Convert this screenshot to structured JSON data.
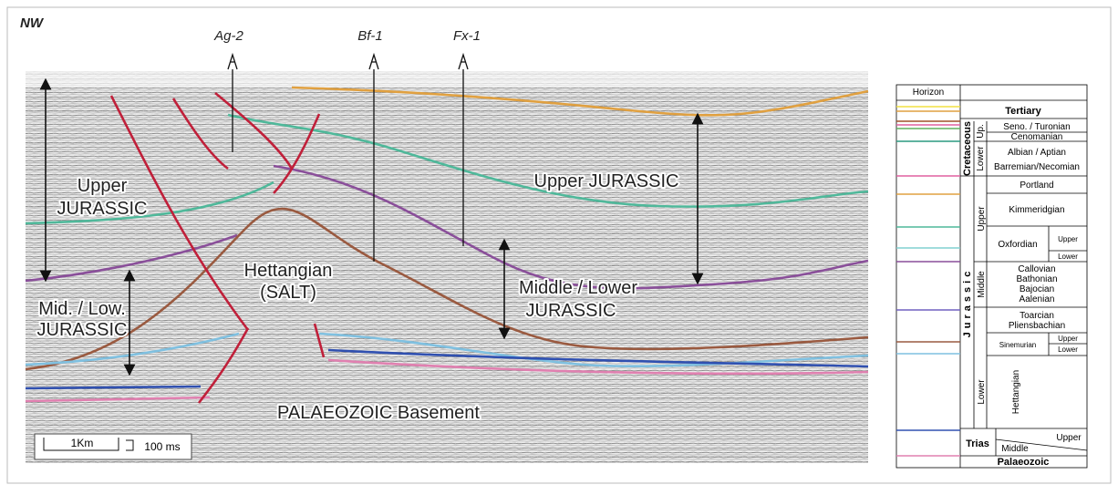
{
  "section": {
    "direction": "NW",
    "wells": [
      "Ag-2",
      "Bf-1",
      "Fx-1"
    ],
    "labels": [
      [
        "Upper",
        "JURASSIC"
      ],
      [
        "Upper JURASSIC"
      ],
      [
        "Mid. / Low.",
        "JURASSIC"
      ],
      [
        "Hettangian",
        "(SALT)"
      ],
      [
        "Middle / Lower",
        "JURASSIC"
      ],
      [
        "PALAEOZOIC Basement"
      ]
    ],
    "scale": [
      "1Km",
      "100 ms"
    ]
  },
  "legend": {
    "header": "Horizon",
    "tertiary": "Tertiary",
    "cretaceous": {
      "name": "Cretaceous",
      "upper": "Up.",
      "lower": "Lower",
      "stages": [
        "Seno. / Turonian",
        "Cenomanian",
        "Albian / Aptian",
        "Barremian/Necomian"
      ]
    },
    "jurassic": {
      "name": "Jurassic",
      "upper": "Upper",
      "middle": "Middle",
      "lower": "Lower",
      "stages": [
        "Portland",
        "Kimmeridgian",
        "Oxfordian",
        "Upper",
        "Lower",
        "Callovian",
        "Bathonian",
        "Bajocian",
        "Aalenian",
        "Toarcian",
        "Pliensbachian",
        "Sinemurian",
        "Upper",
        "Lower",
        "Hettangian"
      ]
    },
    "trias": {
      "name": "Trias",
      "upper": "Upper",
      "middle": "Middle"
    },
    "palaeozoic": "Palaeozoic"
  }
}
